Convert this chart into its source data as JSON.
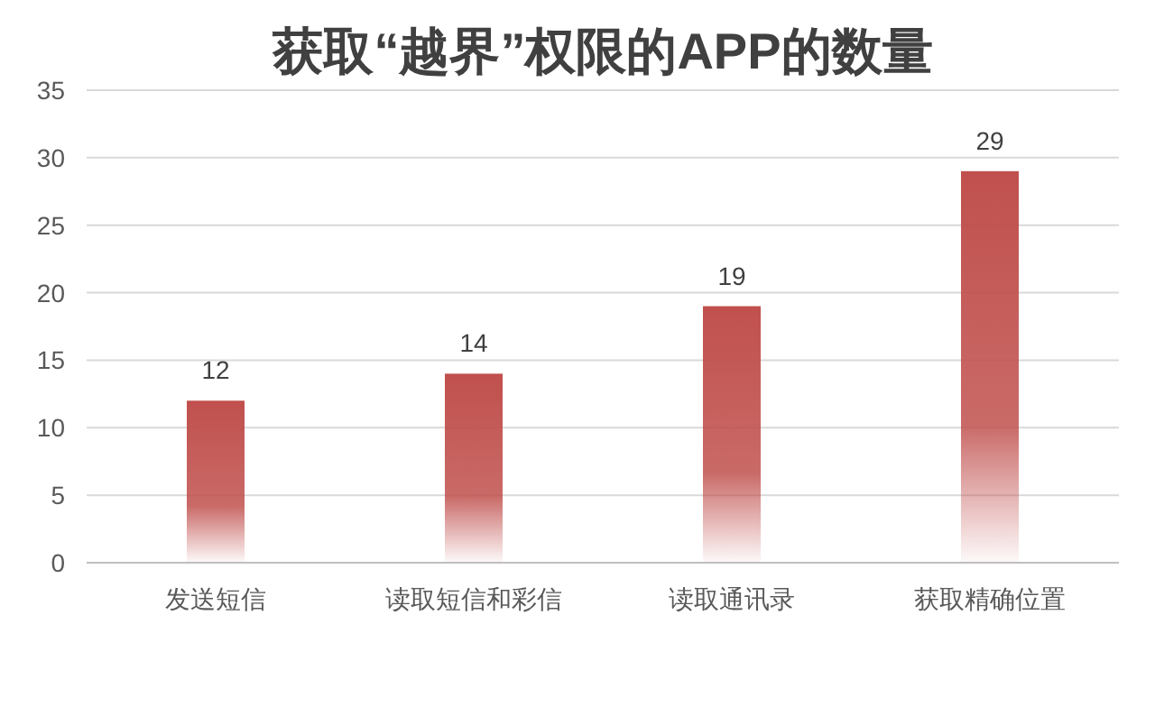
{
  "chart_data": {
    "type": "bar",
    "title": "获取“越界”权限的APP的数量",
    "categories": [
      "发送短信",
      "读取短信和彩信",
      "读取通讯录",
      "获取精确位置"
    ],
    "values": [
      12,
      14,
      19,
      29
    ],
    "color": "#c0504d",
    "ylim": [
      0,
      35
    ],
    "yticks": [
      0,
      5,
      10,
      15,
      20,
      25,
      30,
      35
    ],
    "grid": "y",
    "data_labels": true
  }
}
